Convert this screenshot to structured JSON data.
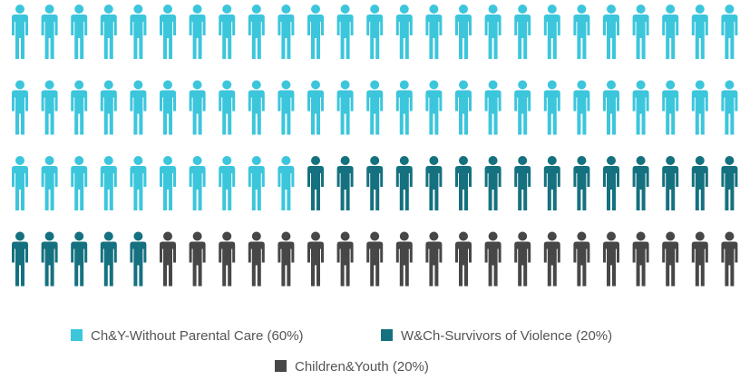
{
  "chart_data": {
    "type": "pictograph",
    "total_icons": 100,
    "icons_per_row": 25,
    "series": [
      {
        "name": "Ch&Y-Without Parental Care",
        "percent": 60,
        "count": 60,
        "color": "#3cc6dc",
        "legend_label": "Ch&Y-Without Parental Care (60%)"
      },
      {
        "name": "W&Ch-Survivors of Violence",
        "percent": 20,
        "count": 20,
        "color": "#15717f",
        "legend_label": "W&Ch-Survivors of Violence (20%)"
      },
      {
        "name": "Children&Youth",
        "percent": 20,
        "count": 20,
        "color": "#474747",
        "legend_label": "Children&Youth (20%)"
      }
    ],
    "legend_position": "bottom",
    "icon": "person-icon"
  }
}
